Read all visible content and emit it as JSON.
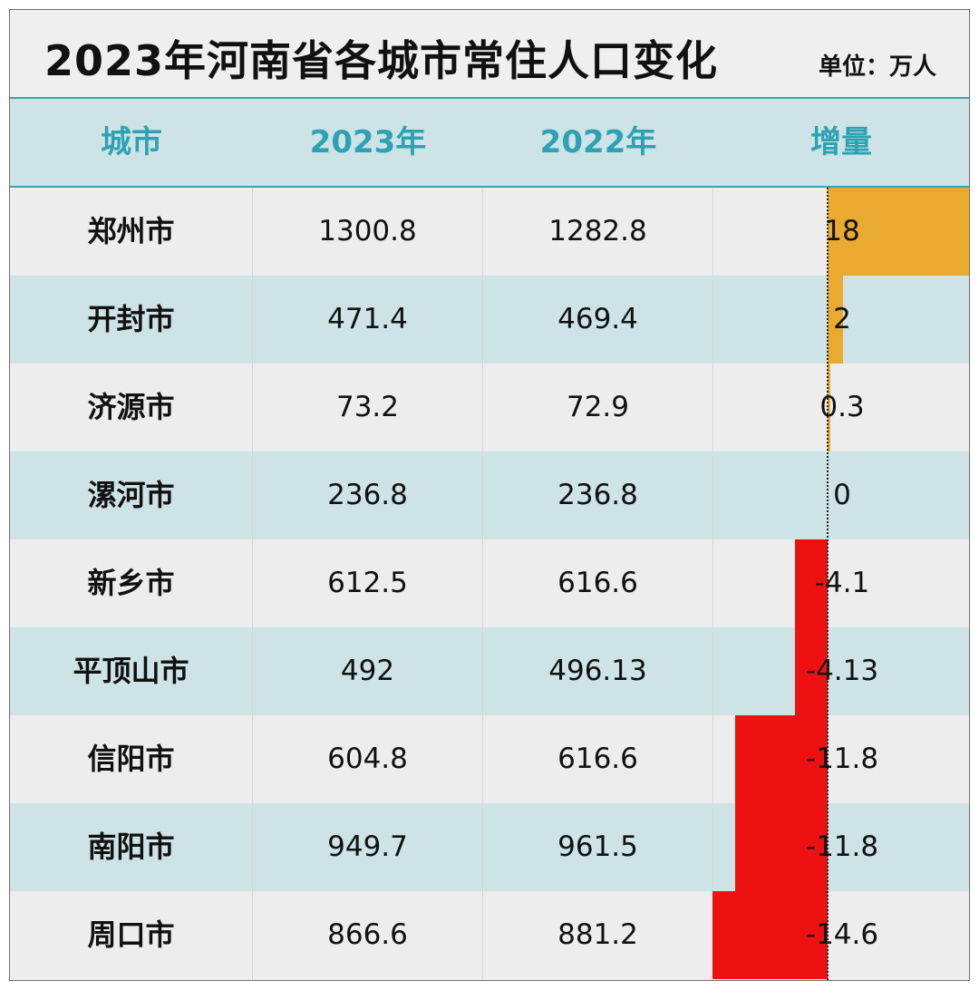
{
  "title": "2023年河南省各城市常住人口变化",
  "unit": "单位：万人",
  "headers": [
    "城市",
    "2023年",
    "2022年",
    "增量"
  ],
  "colors": {
    "positive": "#eaa92f",
    "negative": "#ee1111",
    "header_text": "#2ea2b3",
    "stripe": "#cde3e6"
  },
  "chart_data": {
    "type": "table",
    "title": "2023年河南省各城市常住人口变化",
    "unit": "单位：万人",
    "columns": [
      "城市",
      "2023年",
      "2022年",
      "增量"
    ],
    "rows": [
      {
        "city": "郑州市",
        "y2023": "1300.8",
        "y2022": "1282.8",
        "inc": "18",
        "inc_value": 18
      },
      {
        "city": "开封市",
        "y2023": "471.4",
        "y2022": "469.4",
        "inc": "2",
        "inc_value": 2
      },
      {
        "city": "济源市",
        "y2023": "73.2",
        "y2022": "72.9",
        "inc": "0.3",
        "inc_value": 0.3
      },
      {
        "city": "漯河市",
        "y2023": "236.8",
        "y2022": "236.8",
        "inc": "0",
        "inc_value": 0
      },
      {
        "city": "新乡市",
        "y2023": "612.5",
        "y2022": "616.6",
        "inc": "-4.1",
        "inc_value": -4.1
      },
      {
        "city": "平顶山市",
        "y2023": "492",
        "y2022": "496.13",
        "inc": "-4.13",
        "inc_value": -4.13
      },
      {
        "city": "信阳市",
        "y2023": "604.8",
        "y2022": "616.6",
        "inc": "-11.8",
        "inc_value": -11.8
      },
      {
        "city": "南阳市",
        "y2023": "949.7",
        "y2022": "961.5",
        "inc": "-11.8",
        "inc_value": -11.8
      },
      {
        "city": "周口市",
        "y2023": "866.6",
        "y2022": "881.2",
        "inc": "-14.6",
        "inc_value": -14.6
      }
    ]
  }
}
